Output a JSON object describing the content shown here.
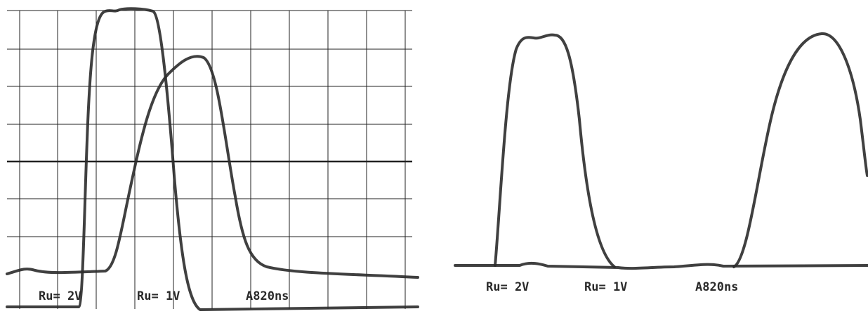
{
  "left_panel": {
    "labels": [
      "Ru= 2V",
      "Ru= 1V",
      "A820ns"
    ]
  },
  "right_panel": {
    "labels": [
      "Ru= 2V",
      "Ru= 1V",
      "A820ns"
    ]
  }
}
